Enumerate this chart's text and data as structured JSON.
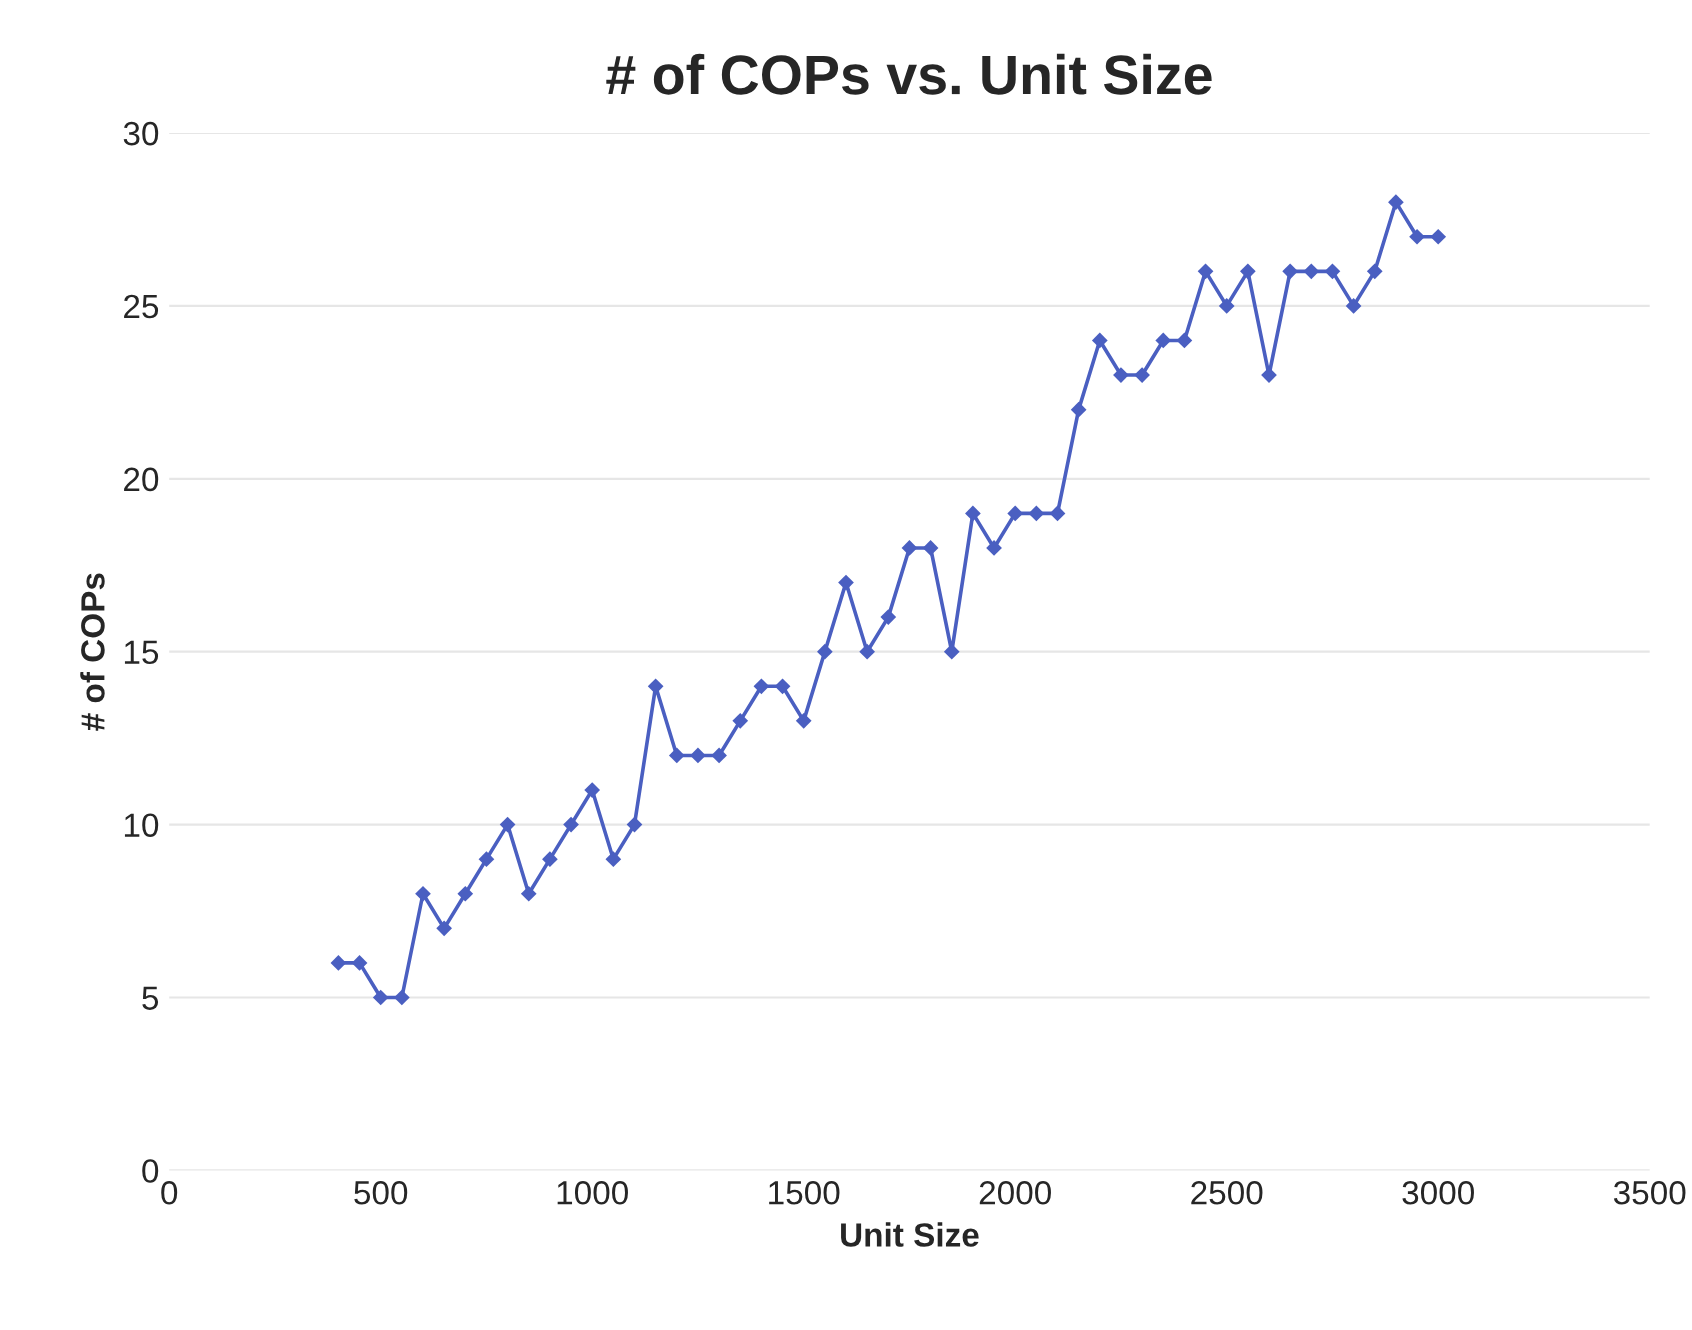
{
  "chart_data": {
    "type": "line",
    "title": "# of COPs vs. Unit Size",
    "xlabel": "Unit Size",
    "ylabel": "# of COPs",
    "x": [
      400,
      450,
      500,
      550,
      600,
      650,
      700,
      750,
      800,
      850,
      900,
      950,
      1000,
      1050,
      1100,
      1150,
      1200,
      1250,
      1300,
      1350,
      1400,
      1450,
      1500,
      1550,
      1600,
      1650,
      1700,
      1750,
      1800,
      1850,
      1900,
      1950,
      2000,
      2050,
      2100,
      2150,
      2200,
      2250,
      2300,
      2350,
      2400,
      2450,
      2500,
      2550,
      2600,
      2650,
      2700,
      2750,
      2800,
      2850,
      2900,
      2950,
      3000
    ],
    "series": [
      {
        "color": "#4a5fc1",
        "values": [
          6,
          6,
          5,
          5,
          8,
          7,
          8,
          9,
          10,
          8,
          9,
          10,
          11,
          9,
          10,
          14,
          12,
          12,
          12,
          13,
          14,
          14,
          13,
          15,
          17,
          15,
          16,
          18,
          18,
          15,
          19,
          18,
          19,
          19,
          19,
          22,
          24,
          23,
          23,
          24,
          24,
          26,
          25,
          26,
          23,
          26,
          26,
          26,
          25,
          26,
          28,
          27,
          27
        ]
      }
    ],
    "xlim": [
      0,
      3500
    ],
    "xticks": [
      0,
      500,
      1000,
      1500,
      2000,
      2500,
      3000,
      3500
    ],
    "ylim": [
      0,
      30
    ],
    "yticks": [
      0,
      5,
      10,
      15,
      20,
      25,
      30
    ],
    "grid": "y",
    "marker": "diamond",
    "line_style": "solid",
    "legend": false
  }
}
